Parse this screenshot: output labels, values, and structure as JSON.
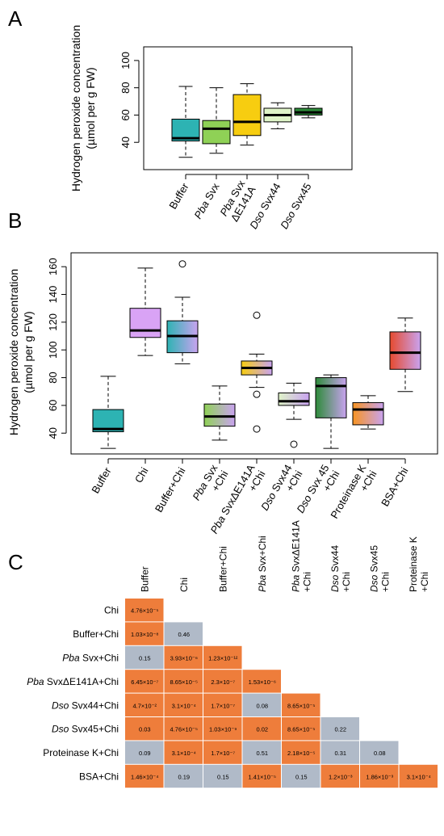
{
  "panels": {
    "a": "A",
    "b": "B",
    "c": "C"
  },
  "chart_data": [
    {
      "type": "box",
      "ylabel": "Hydrogen peroxide concentration",
      "ylabel2": "(µmol per g FW)",
      "ylim": [
        20,
        110
      ],
      "yticks": [
        40,
        60,
        80,
        100
      ],
      "categories": [
        {
          "plain": "Buffer",
          "ital": "",
          "line2": ""
        },
        {
          "plain": " Svx",
          "ital": "Pba",
          "line2": ""
        },
        {
          "plain": " Svx",
          "ital": "Pba",
          "line2": "ΔE141A"
        },
        {
          "plain": " Svx44",
          "ital": "Dso",
          "line2": ""
        },
        {
          "plain": " Svx45",
          "ital": "Dso",
          "line2": ""
        }
      ],
      "boxes": [
        {
          "min": 29,
          "q1": 41,
          "median": 43,
          "q3": 57,
          "max": 81,
          "outliers": [],
          "color": "#2db3b3",
          "color2": "#2db3b3"
        },
        {
          "min": 32,
          "q1": 39,
          "median": 50,
          "q3": 56,
          "max": 80,
          "outliers": [],
          "color": "#8fd156",
          "color2": "#8fd156"
        },
        {
          "min": 38,
          "q1": 45,
          "median": 55,
          "q3": 75,
          "max": 83,
          "outliers": [],
          "color": "#f7cd10",
          "color2": "#f7cd10"
        },
        {
          "min": 50,
          "q1": 55,
          "median": 60,
          "q3": 65,
          "max": 69,
          "outliers": [],
          "color": "#dff4c8",
          "color2": "#dff4c8"
        },
        {
          "min": 58,
          "q1": 60,
          "median": 62,
          "q3": 65,
          "max": 67,
          "outliers": [],
          "color": "#2e8b3a",
          "color2": "#2e8b3a"
        }
      ]
    },
    {
      "type": "box",
      "ylabel": "Hydrogen peroxide concentration",
      "ylabel2": "(µmol per g FW)",
      "ylim": [
        25,
        170
      ],
      "yticks": [
        40,
        60,
        80,
        100,
        120,
        140,
        160
      ],
      "categories": [
        {
          "ital": "",
          "plain": "Buffer",
          "line2": ""
        },
        {
          "ital": "",
          "plain": "Chi",
          "line2": ""
        },
        {
          "ital": "",
          "plain": "Buffer+Chi",
          "line2": ""
        },
        {
          "ital": "Pba",
          "plain": " Svx",
          "line2": "+Chi"
        },
        {
          "ital": "Pba",
          "plain": " SvxΔE141A",
          "line2": "+Chi"
        },
        {
          "ital": "Dso",
          "plain": " Svx44",
          "line2": "+Chi"
        },
        {
          "ital": "Dso",
          "plain": " Svx 45",
          "line2": "+Chi"
        },
        {
          "ital": "",
          "plain": "Proteinase K",
          "line2": "+Chi"
        },
        {
          "ital": "",
          "plain": "BSA+Chi",
          "line2": ""
        }
      ],
      "boxes": [
        {
          "min": 29,
          "q1": 41,
          "median": 43,
          "q3": 57,
          "max": 81,
          "outliers": [],
          "color": "#2db3b3",
          "color2": "#2db3b3"
        },
        {
          "min": 96,
          "q1": 109,
          "median": 114,
          "q3": 130,
          "max": 159,
          "outliers": [],
          "color": "#d9a3f5",
          "color2": "#d9a3f5"
        },
        {
          "min": 90,
          "q1": 98,
          "median": 110,
          "q3": 121,
          "max": 138,
          "outliers": [
            162
          ],
          "color": "#2db3b3",
          "color2": "#c9a3f0"
        },
        {
          "min": 35,
          "q1": 45,
          "median": 52,
          "q3": 61,
          "max": 74,
          "outliers": [],
          "color": "#8fd156",
          "color2": "#c9a3f0"
        },
        {
          "min": 73,
          "q1": 82,
          "median": 87,
          "q3": 92,
          "max": 97,
          "outliers": [
            125,
            68,
            43
          ],
          "color": "#f7cd10",
          "color2": "#c9a3f0"
        },
        {
          "min": 50,
          "q1": 60,
          "median": 63,
          "q3": 69,
          "max": 76,
          "outliers": [
            32
          ],
          "color": "#dff4c8",
          "color2": "#c9a3f0"
        },
        {
          "min": 29,
          "q1": 51,
          "median": 74,
          "q3": 80,
          "max": 82,
          "outliers": [],
          "color": "#2e8b3a",
          "color2": "#c9a3f0"
        },
        {
          "min": 43,
          "q1": 46,
          "median": 57,
          "q3": 62,
          "max": 67,
          "outliers": [],
          "color": "#f79422",
          "color2": "#c9a3f0"
        },
        {
          "min": 70,
          "q1": 86,
          "median": 98,
          "q3": 113,
          "max": 123,
          "outliers": [],
          "color": "#e64a2e",
          "color2": "#c9a3f0"
        }
      ]
    },
    {
      "type": "table",
      "columns": [
        {
          "ital": "",
          "plain": "Buffer",
          "line2": ""
        },
        {
          "ital": "",
          "plain": "Chi",
          "line2": ""
        },
        {
          "ital": "",
          "plain": "Buffer+Chi",
          "line2": ""
        },
        {
          "ital": "Pba",
          "plain": " Svx+Chi",
          "line2": ""
        },
        {
          "ital": "Pba",
          "plain": " SvxΔE141A",
          "line2": "+Chi"
        },
        {
          "ital": "Dso",
          "plain": " Svx44",
          "line2": "+Chi"
        },
        {
          "ital": "Dso",
          "plain": " Svx45",
          "line2": "+Chi"
        },
        {
          "ital": "",
          "plain": "Proteinase K",
          "line2": "+Chi"
        }
      ],
      "rows": [
        {
          "ital": "",
          "plain": "Chi"
        },
        {
          "ital": "",
          "plain": "Buffer+Chi"
        },
        {
          "ital": "Pba",
          "plain": " Svx+Chi"
        },
        {
          "ital": "Pba",
          "plain": " SvxΔE141A+Chi"
        },
        {
          "ital": "Dso",
          "plain": " Svx44+Chi"
        },
        {
          "ital": "Dso",
          "plain": " Svx45+Chi"
        },
        {
          "ital": "",
          "plain": "Proteinase K+Chi"
        },
        {
          "ital": "",
          "plain": "BSA+Chi"
        }
      ],
      "colors": {
        "significant": "#ee7d3b",
        "nonsignificant": "#b0bac8"
      },
      "cells": [
        [
          {
            "v": "4.76×10⁻⁵",
            "s": true
          }
        ],
        [
          {
            "v": "1.03×10⁻⁸",
            "s": true
          },
          {
            "v": "0.46",
            "s": false
          }
        ],
        [
          {
            "v": "0.15",
            "s": false
          },
          {
            "v": "3.93×10⁻⁶",
            "s": true
          },
          {
            "v": "1.23×10⁻¹²",
            "s": true
          }
        ],
        [
          {
            "v": "6.45×10⁻⁷",
            "s": true
          },
          {
            "v": "8.65×10⁻⁵",
            "s": true
          },
          {
            "v": "2.3×10⁻⁷",
            "s": true
          },
          {
            "v": "1.53×10⁻⁶",
            "s": true
          }
        ],
        [
          {
            "v": "4.7×10⁻²",
            "s": true
          },
          {
            "v": "3.1×10⁻⁴",
            "s": true
          },
          {
            "v": "1.7×10⁻⁷",
            "s": true
          },
          {
            "v": "0.08",
            "s": false
          },
          {
            "v": "8.65×10⁻⁵",
            "s": true
          }
        ],
        [
          {
            "v": "0.03",
            "s": true
          },
          {
            "v": "4.76×10⁻⁵",
            "s": true
          },
          {
            "v": "1.03×10⁻⁹",
            "s": true
          },
          {
            "v": "0.02",
            "s": true
          },
          {
            "v": "8.65×10⁻⁵",
            "s": true
          },
          {
            "v": "0.22",
            "s": false
          }
        ],
        [
          {
            "v": "0.09",
            "s": false
          },
          {
            "v": "3.1×10⁻⁴",
            "s": true
          },
          {
            "v": "1.7×10⁻⁷",
            "s": true
          },
          {
            "v": "0.51",
            "s": false
          },
          {
            "v": "2.18×10⁻⁵",
            "s": true
          },
          {
            "v": "0.31",
            "s": false
          },
          {
            "v": "0.08",
            "s": false
          }
        ],
        [
          {
            "v": "1.46×10⁻⁴",
            "s": true
          },
          {
            "v": "0.19",
            "s": false
          },
          {
            "v": "0.15",
            "s": false
          },
          {
            "v": "1.41×10⁻⁵",
            "s": true
          },
          {
            "v": "0.15",
            "s": false
          },
          {
            "v": "1.2×10⁻³",
            "s": true
          },
          {
            "v": "1.86×10⁻³",
            "s": true
          },
          {
            "v": "3.1×10⁻⁴",
            "s": true
          }
        ]
      ]
    }
  ]
}
